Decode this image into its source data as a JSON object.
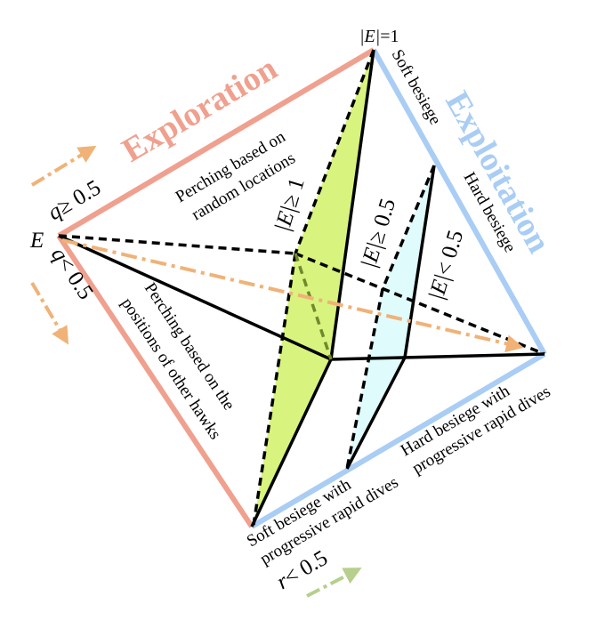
{
  "top_label": {
    "italic": "|E|",
    "rest": "=1"
  },
  "left_label": "E",
  "exploration": {
    "title": "Exploration",
    "perching_random": [
      "Perching based on",
      "random locations"
    ],
    "perching_hawks": [
      "Perching based on the",
      "positions of other hawks"
    ],
    "q_ge": {
      "italic": "q",
      "rest": "≥ 0.5"
    },
    "q_lt": {
      "italic": "q",
      "rest": "< 0.5"
    }
  },
  "exploitation": {
    "title": "Exploitation",
    "soft_besiege": "Soft besiege",
    "hard_besiege": "Hard besiege",
    "soft_dives": [
      "Soft besiege with",
      "progressive rapid dives"
    ],
    "hard_dives": [
      "Hard besiege with",
      "progressive rapid dives"
    ],
    "r_lt": {
      "italic": "r",
      "rest": "< 0.5"
    }
  },
  "regions": {
    "e_ge_1": {
      "italic": "|E|",
      "rest": "≥ 1"
    },
    "e_ge_05": {
      "italic": "|E|",
      "rest": "≥ 0.5"
    },
    "e_lt_05": {
      "italic": "|E|",
      "rest": "< 0.5"
    }
  },
  "colors": {
    "exploration": "#f0a08e",
    "exploitation": "#a9cdf4",
    "arrow_orange": "#f0b277",
    "arrow_green": "#b6cf8c",
    "fill_green": "#d9f37f",
    "fill_cyan": "#e0fbfc",
    "dash_green": "#6f8a2d"
  }
}
